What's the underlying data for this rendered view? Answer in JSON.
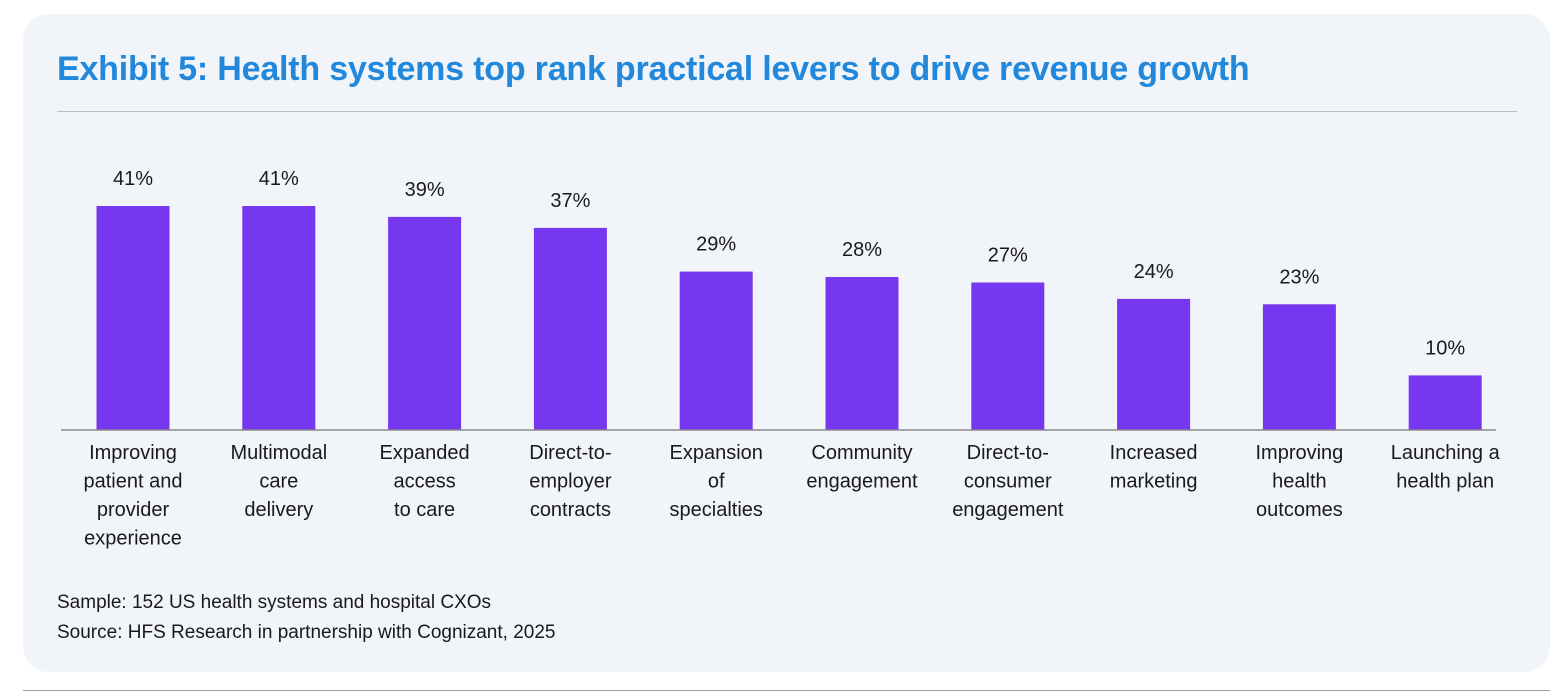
{
  "title": "Exhibit 5: Health systems top rank practical levers to drive revenue growth",
  "footnotes": {
    "sample": "Sample: 152 US health systems and hospital CXOs",
    "source": "Source: HFS Research in partnership with Cognizant, 2025"
  },
  "colors": {
    "title": "#2188dc",
    "bar": "#7637f0",
    "background": "#f1f4f8"
  },
  "chart_data": {
    "type": "bar",
    "title": "Exhibit 5: Health systems top rank practical levers to drive revenue growth",
    "xlabel": "",
    "ylabel": "",
    "ylim": [
      0,
      41
    ],
    "grid": false,
    "value_suffix": "%",
    "categories": [
      [
        "Improving",
        "patient and",
        "provider",
        "experience"
      ],
      [
        "Multimodal",
        "care",
        "delivery"
      ],
      [
        "Expanded",
        "access",
        "to care"
      ],
      [
        "Direct-to-",
        "employer",
        "contracts"
      ],
      [
        "Expansion",
        "of",
        "specialties"
      ],
      [
        "Community",
        "engagement"
      ],
      [
        "Direct-to-",
        "consumer",
        "engagement"
      ],
      [
        "Increased",
        "marketing"
      ],
      [
        "Improving",
        "health",
        "outcomes"
      ],
      [
        "Launching a",
        "health plan"
      ]
    ],
    "values": [
      41,
      41,
      39,
      37,
      29,
      28,
      27,
      24,
      23,
      10
    ]
  }
}
